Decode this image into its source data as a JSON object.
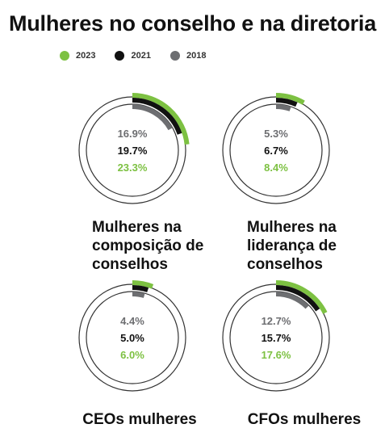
{
  "title": "Mulheres no conselho e na diretoria",
  "colors": {
    "2023": "#7dc142",
    "2021": "#111111",
    "2018": "#6d6e71",
    "ring": "#333333"
  },
  "chart_data": {
    "type": "radial-bar",
    "title": "Mulheres no conselho e na diretoria",
    "legend": [
      "2023",
      "2021",
      "2018"
    ],
    "legend_placement": "top-left",
    "max_percent": 100,
    "panels": [
      {
        "label": "Mulheres na\ncomposição de\nconselhos",
        "values": {
          "2018": 16.9,
          "2021": 19.7,
          "2023": 23.3
        },
        "texts": {
          "2018": "16.9%",
          "2021": "19.7%",
          "2023": "23.3%"
        }
      },
      {
        "label": "Mulheres na\nliderança de\nconselhos",
        "values": {
          "2018": 5.3,
          "2021": 6.7,
          "2023": 8.4
        },
        "texts": {
          "2018": "5.3%",
          "2021": "6.7%",
          "2023": "8.4%"
        }
      },
      {
        "label": "CEOs mulheres",
        "values": {
          "2018": 4.4,
          "2021": 5.0,
          "2023": 6.0
        },
        "texts": {
          "2018": "4.4%",
          "2021": "5.0%",
          "2023": "6.0%"
        }
      },
      {
        "label": "CFOs mulheres",
        "values": {
          "2018": 12.7,
          "2021": 15.7,
          "2023": 17.6
        },
        "texts": {
          "2018": "12.7%",
          "2021": "15.7%",
          "2023": "17.6%"
        }
      }
    ]
  }
}
